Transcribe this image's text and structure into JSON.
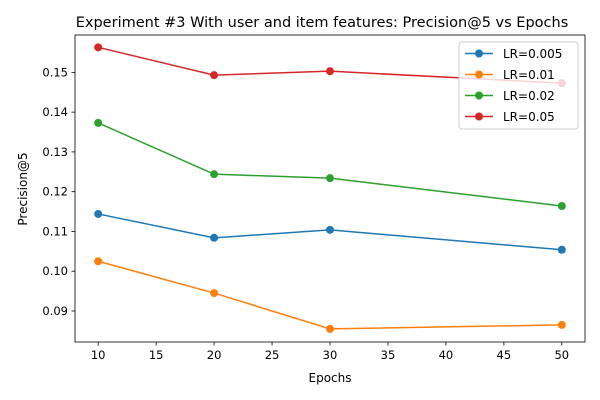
{
  "chart_data": {
    "type": "line",
    "title": "Experiment #3 With user and item features: Precision@5 vs Epochs",
    "xlabel": "Epochs",
    "ylabel": "Precision@5",
    "x": [
      10,
      20,
      30,
      50
    ],
    "xlim": [
      8,
      52
    ],
    "ylim": [
      0.0822,
      0.1594
    ],
    "xticks": [
      10,
      15,
      20,
      25,
      30,
      35,
      40,
      45,
      50
    ],
    "yticks": [
      0.09,
      0.1,
      0.11,
      0.12,
      0.13,
      0.14,
      0.15
    ],
    "xtick_labels": [
      "10",
      "15",
      "20",
      "25",
      "30",
      "35",
      "40",
      "45",
      "50"
    ],
    "ytick_labels": [
      "0.09",
      "0.10",
      "0.11",
      "0.12",
      "0.13",
      "0.14",
      "0.15"
    ],
    "grid": false,
    "legend_position": "top-right",
    "series": [
      {
        "name": "LR=0.005",
        "color": "#1f77b4",
        "values": [
          0.1144,
          0.1084,
          0.1104,
          0.1054
        ]
      },
      {
        "name": "LR=0.01",
        "color": "#ff7f0e",
        "values": [
          0.1025,
          0.0945,
          0.0855,
          0.0865
        ]
      },
      {
        "name": "LR=0.02",
        "color": "#2ca02c",
        "values": [
          0.1373,
          0.1244,
          0.1234,
          0.1164
        ]
      },
      {
        "name": "LR=0.05",
        "color": "#d62728",
        "values": [
          0.1563,
          0.1493,
          0.1503,
          0.1473
        ]
      }
    ]
  }
}
